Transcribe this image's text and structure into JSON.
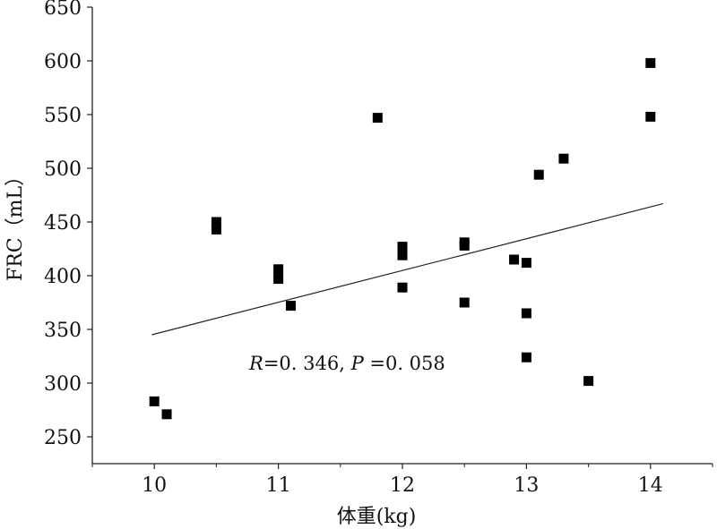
{
  "chart_data": {
    "type": "scatter",
    "xlabel": "体重(kg)",
    "ylabel": "FRC（mL）",
    "xlim": [
      9.5,
      14.5
    ],
    "ylim": [
      225,
      650
    ],
    "xticks": [
      10,
      11,
      12,
      13,
      14
    ],
    "yticks": [
      250,
      300,
      350,
      400,
      450,
      500,
      550,
      600,
      650
    ],
    "points": [
      {
        "x": 10.0,
        "y": 283
      },
      {
        "x": 10.1,
        "y": 271
      },
      {
        "x": 10.5,
        "y": 450
      },
      {
        "x": 10.5,
        "y": 443
      },
      {
        "x": 11.0,
        "y": 406
      },
      {
        "x": 11.0,
        "y": 397
      },
      {
        "x": 11.1,
        "y": 372
      },
      {
        "x": 11.8,
        "y": 547
      },
      {
        "x": 12.0,
        "y": 427
      },
      {
        "x": 12.0,
        "y": 419
      },
      {
        "x": 12.0,
        "y": 389
      },
      {
        "x": 12.5,
        "y": 431
      },
      {
        "x": 12.5,
        "y": 428
      },
      {
        "x": 12.5,
        "y": 375
      },
      {
        "x": 12.9,
        "y": 415
      },
      {
        "x": 13.0,
        "y": 412
      },
      {
        "x": 13.0,
        "y": 365
      },
      {
        "x": 13.0,
        "y": 324
      },
      {
        "x": 13.1,
        "y": 494
      },
      {
        "x": 13.3,
        "y": 509
      },
      {
        "x": 13.5,
        "y": 302
      },
      {
        "x": 14.0,
        "y": 598
      },
      {
        "x": 14.0,
        "y": 548
      }
    ],
    "trendline": {
      "x": [
        9.98,
        14.1
      ],
      "y": [
        345,
        467
      ]
    },
    "annotation": {
      "R_label": "R",
      "R_value": "=0. 346, ",
      "P_label": "P",
      "P_value": " =0. 058"
    }
  }
}
